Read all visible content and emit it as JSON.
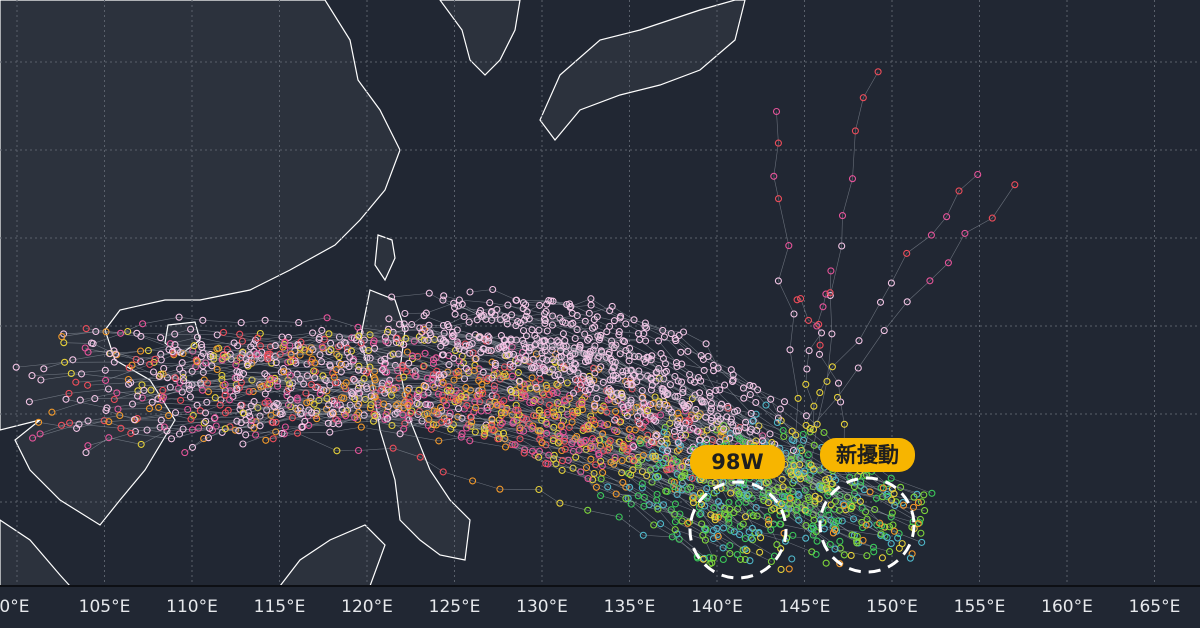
{
  "map": {
    "projection": "equirectangular",
    "lon_range": [
      99,
      168
    ],
    "x_ticks": [
      "00°E",
      "105°E",
      "110°E",
      "115°E",
      "120°E",
      "125°E",
      "130°E",
      "135°E",
      "140°E",
      "145°E",
      "150°E",
      "155°E",
      "160°E",
      "165°E"
    ],
    "colors": {
      "background": "#212733",
      "land": "#2c323d",
      "coast": "#ffffff",
      "grid": "#5a606b",
      "label_bg": "#f7b500"
    },
    "track_colors": [
      "#f4c6e6",
      "#e6549a",
      "#ee4d5a",
      "#f39a2b",
      "#e7d23a",
      "#7fd63b",
      "#3cc85a",
      "#4fb7c9"
    ]
  },
  "annotations": [
    {
      "label": "98W",
      "shape": "dashed-circle"
    },
    {
      "label": "新擾動",
      "shape": "dashed-circle"
    }
  ]
}
